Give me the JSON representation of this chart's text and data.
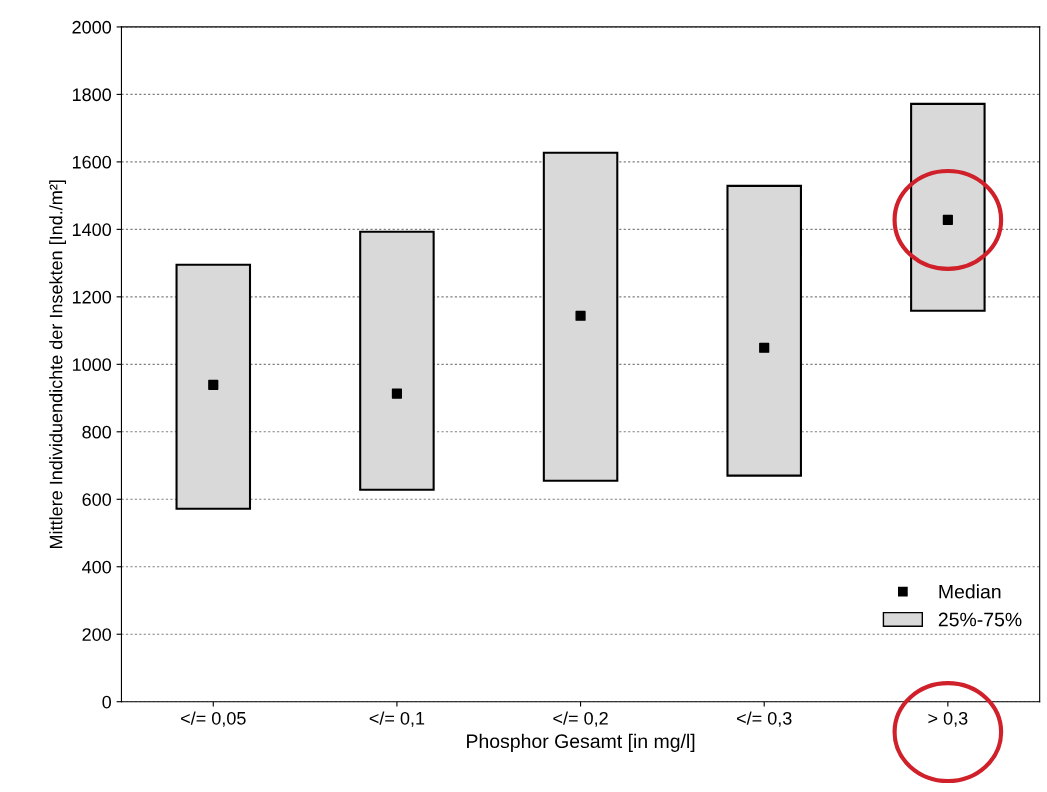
{
  "chart_data": {
    "type": "bar",
    "xlabel": "Phosphor Gesamt [in mg/l]",
    "ylabel": "Mittlere Individuendichte der Insekten [Ind./m²]",
    "categories": [
      "</= 0,05",
      "</= 0,1",
      "</= 0,2",
      "</= 0,3",
      "> 0,3"
    ],
    "series": [
      {
        "name": "25%-75%",
        "color": "#d9d9d9",
        "base": [
          572,
          628,
          655,
          670,
          1159
        ],
        "values": [
          723,
          765,
          972,
          859,
          613
        ]
      },
      {
        "name": "Median",
        "type": "scatter",
        "color": "#000000",
        "x": [
          "</= 0,05",
          "</= 0,1",
          "</= 0,2",
          "</= 0,3",
          "> 0,3"
        ],
        "values": [
          939,
          913,
          1144,
          1049,
          1428
        ]
      }
    ],
    "ylim": [
      0,
      2000
    ],
    "yticks": [
      0,
      200,
      400,
      600,
      800,
      1000,
      1200,
      1400,
      1600,
      1800,
      2000
    ],
    "grid": "y",
    "legend": "bottom right",
    "marker": "square"
  }
}
